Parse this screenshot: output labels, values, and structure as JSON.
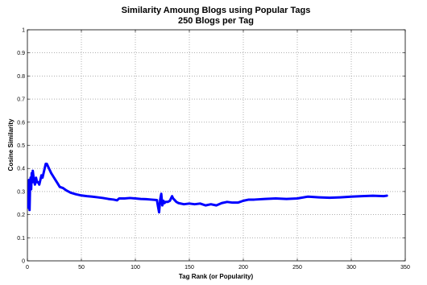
{
  "chart_data": {
    "type": "line",
    "title": "Similarity Amoung Blogs using Popular Tags",
    "subtitle": "250 Blogs per Tag",
    "xlabel": "Tag Rank (or Popularity)",
    "ylabel": "Cosine Similarity",
    "xlim": [
      0,
      350
    ],
    "ylim": [
      0,
      1
    ],
    "xticks": [
      0,
      50,
      100,
      150,
      200,
      250,
      300,
      350
    ],
    "yticks": [
      0,
      0.1,
      0.2,
      0.3,
      0.4,
      0.5,
      0.6,
      0.7,
      0.8,
      0.9,
      1
    ],
    "grid": true,
    "line_color": "#0000ff",
    "series": [
      {
        "x": [
          1,
          1.5,
          2,
          2.5,
          3,
          3.5,
          4,
          4.5,
          5,
          6,
          7,
          8,
          9,
          10,
          11,
          12,
          13,
          14,
          15,
          16,
          17,
          18,
          19,
          20,
          22,
          24,
          26,
          28,
          30,
          33,
          36,
          40,
          45,
          50,
          55,
          60,
          65,
          70,
          75,
          80,
          83,
          85,
          90,
          95,
          100,
          105,
          110,
          115,
          120,
          121,
          122,
          123,
          124,
          125,
          126,
          127,
          128,
          130,
          132,
          134,
          135,
          136,
          138,
          140,
          145,
          150,
          155,
          160,
          165,
          170,
          175,
          180,
          185,
          190,
          195,
          200,
          205,
          210,
          220,
          230,
          240,
          250,
          260,
          270,
          280,
          290,
          300,
          310,
          320,
          330,
          333
        ],
        "y": [
          0.23,
          0.35,
          0.22,
          0.33,
          0.36,
          0.31,
          0.38,
          0.34,
          0.39,
          0.35,
          0.33,
          0.36,
          0.34,
          0.34,
          0.33,
          0.35,
          0.37,
          0.36,
          0.38,
          0.4,
          0.42,
          0.42,
          0.41,
          0.4,
          0.38,
          0.365,
          0.35,
          0.335,
          0.32,
          0.315,
          0.305,
          0.295,
          0.288,
          0.283,
          0.28,
          0.278,
          0.275,
          0.272,
          0.268,
          0.265,
          0.262,
          0.27,
          0.27,
          0.272,
          0.27,
          0.268,
          0.267,
          0.265,
          0.263,
          0.235,
          0.21,
          0.265,
          0.29,
          0.24,
          0.26,
          0.25,
          0.255,
          0.255,
          0.26,
          0.28,
          0.27,
          0.265,
          0.255,
          0.25,
          0.245,
          0.248,
          0.245,
          0.248,
          0.24,
          0.245,
          0.24,
          0.25,
          0.255,
          0.252,
          0.252,
          0.26,
          0.265,
          0.265,
          0.268,
          0.27,
          0.268,
          0.27,
          0.278,
          0.275,
          0.273,
          0.275,
          0.278,
          0.28,
          0.282,
          0.28,
          0.282
        ]
      }
    ]
  }
}
